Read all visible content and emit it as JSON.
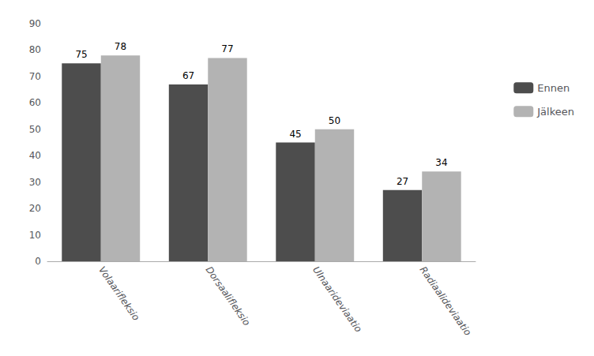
{
  "chart_data": {
    "type": "bar",
    "categories": [
      "Volaarifleksio",
      "Dorsaalifleksio",
      "Ulnaarideviaatio",
      "Radiaalideviaatio"
    ],
    "series": [
      {
        "name": "Ennen",
        "color": "#4d4d4d",
        "values": [
          75,
          67,
          45,
          27
        ]
      },
      {
        "name": "Jälkeen",
        "color": "#b3b3b3",
        "values": [
          78,
          77,
          50,
          34
        ]
      }
    ],
    "ylim": [
      0,
      90
    ],
    "yticks": [
      0,
      10,
      20,
      30,
      40,
      50,
      60,
      70,
      80,
      90
    ],
    "grid": false,
    "legend": "right",
    "data_labels": true
  }
}
